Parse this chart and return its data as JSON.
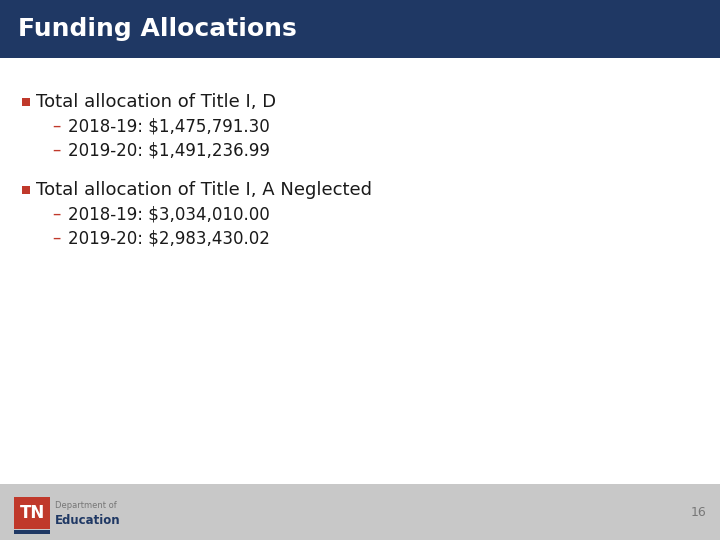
{
  "title": "Funding Allocations",
  "title_bg_color": "#1F3864",
  "title_text_color": "#FFFFFF",
  "slide_bg_color": "#FFFFFF",
  "footer_bg_color": "#C8C8C8",
  "bullet_color": "#C0392B",
  "dash_color": "#C0392B",
  "body_text_color": "#1a1a1a",
  "bullet1_text": "Total allocation of Title I, D",
  "bullet1_sub1": "2018-19: $1,475,791.30",
  "bullet1_sub2": "2019-20: $1,491,236.99",
  "bullet2_text": "Total allocation of Title I, A Neglected",
  "bullet2_sub1": "2018-19: $3,034,010.00",
  "bullet2_sub2": "2019-20: $2,983,430.02",
  "page_number": "16",
  "tn_box_color": "#C0392B",
  "tn_text": "TN",
  "dept_line1": "Department of",
  "dept_line2": "Education",
  "footer_line_color": "#1F3864",
  "title_fontsize": 18,
  "bullet_fontsize": 13,
  "sub_fontsize": 12,
  "page_fontsize": 9
}
